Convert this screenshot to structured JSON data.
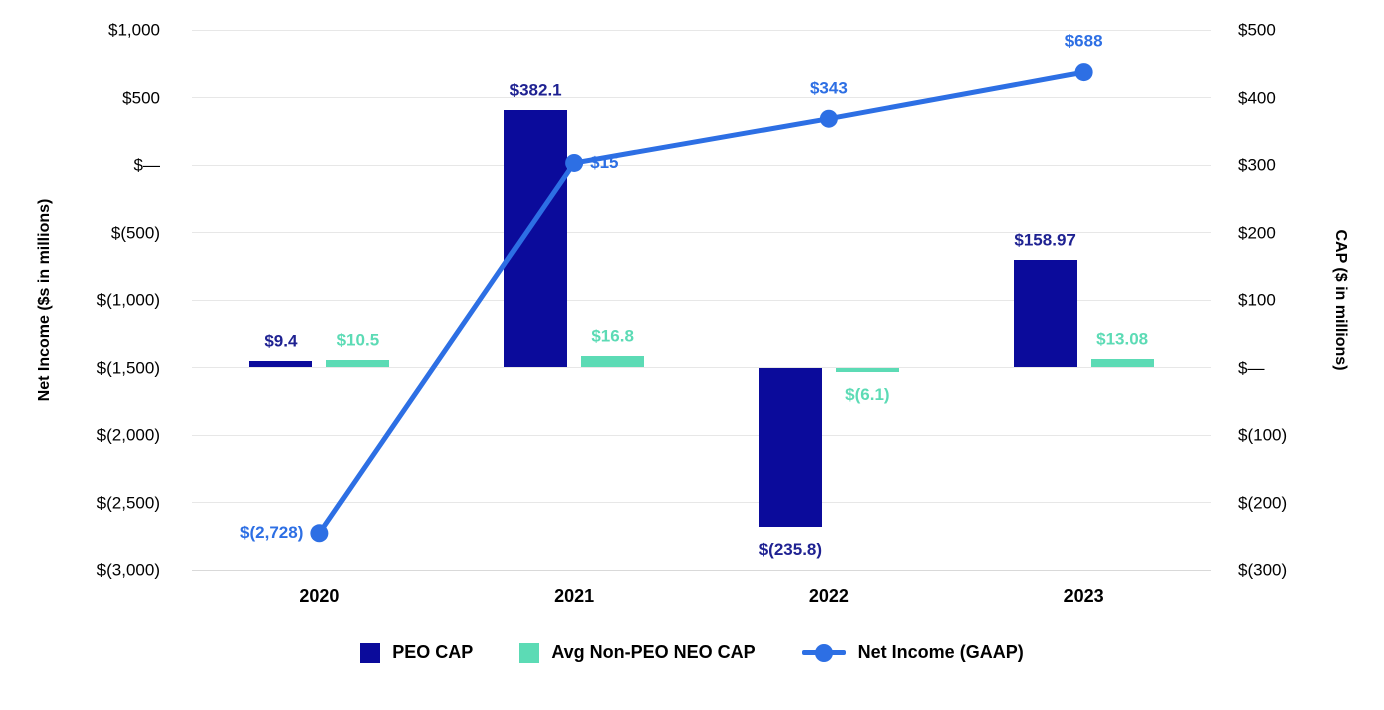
{
  "chart_data": {
    "type": "combo-bar-line",
    "categories": [
      "2020",
      "2021",
      "2022",
      "2023"
    ],
    "series": [
      {
        "name": "PEO CAP",
        "type": "bar",
        "axis": "right",
        "color": "#0b0b9b",
        "label_color": "#1f2292",
        "values": [
          9.4,
          382.1,
          -235.8,
          158.97
        ],
        "labels": [
          "$9.4",
          "$382.1",
          "$(235.8)",
          "$158.97"
        ]
      },
      {
        "name": "Avg Non-PEO NEO CAP",
        "type": "bar",
        "axis": "right",
        "color": "#5cdbb5",
        "label_color": "#5cdbb5",
        "values": [
          10.5,
          16.8,
          -6.1,
          13.08
        ],
        "labels": [
          "$10.5",
          "$16.8",
          "$(6.1)",
          "$13.08"
        ]
      },
      {
        "name": "Net Income (GAAP)",
        "type": "line",
        "axis": "left",
        "color": "#2d6fe4",
        "label_color": "#2d6fe4",
        "values": [
          -2728,
          15,
          343,
          688
        ],
        "labels": [
          "$(2,728)",
          "$15",
          "$343",
          "$688"
        ],
        "label_pos": [
          "left",
          "right",
          "above",
          "above"
        ]
      }
    ],
    "left_axis": {
      "title": "Net Income ($s in millions)",
      "min": -3000,
      "max": 1000,
      "step": 500,
      "ticks": [
        "$1,000",
        "$500",
        "$—",
        "$(500)",
        "$(1,000)",
        "$(1,500)",
        "$(2,000)",
        "$(2,500)",
        "$(3,000)"
      ]
    },
    "right_axis": {
      "title": "CAP ($ in millions)",
      "min": -300,
      "max": 500,
      "step": 100,
      "ticks": [
        "$500",
        "$400",
        "$300",
        "$200",
        "$100",
        "$—",
        "$(100)",
        "$(200)",
        "$(300)"
      ]
    },
    "legend": {
      "entries": [
        "PEO CAP",
        "Avg Non-PEO NEO CAP",
        "Net Income (GAAP)"
      ],
      "position": "bottom"
    },
    "grid": "horizontal"
  }
}
